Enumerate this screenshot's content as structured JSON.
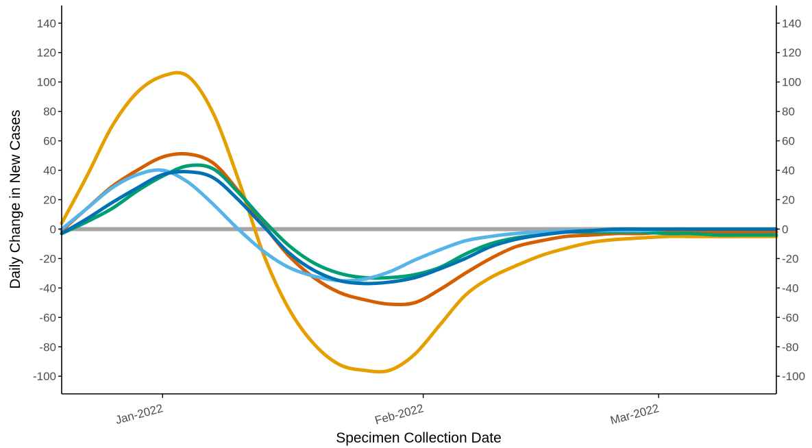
{
  "chart_data": {
    "type": "line",
    "title": "",
    "xlabel": "Specimen Collection Date",
    "ylabel": "Daily Change in New Cases",
    "ylim": [
      -112,
      152
    ],
    "xlim": [
      "2021-12-20",
      "2022-03-15"
    ],
    "y_ticks": [
      "140",
      "120",
      "100",
      "80",
      "60",
      "40",
      "20",
      "0",
      "-20",
      "-40",
      "-60",
      "-80",
      "-100"
    ],
    "x_ticks": [
      {
        "label": "Jan-2022",
        "date": "2022-01-01"
      },
      {
        "label": "Feb-2022",
        "date": "2022-02-01"
      },
      {
        "label": "Mar-2022",
        "date": "2022-03-01"
      }
    ],
    "grid": false,
    "legend": "none",
    "reference_line": {
      "y": 0,
      "color": "#a6a6a6"
    },
    "x": [
      "2021-12-20",
      "2021-12-23",
      "2021-12-26",
      "2021-12-29",
      "2022-01-01",
      "2022-01-04",
      "2022-01-07",
      "2022-01-10",
      "2022-01-13",
      "2022-01-16",
      "2022-01-19",
      "2022-01-22",
      "2022-01-25",
      "2022-01-28",
      "2022-01-31",
      "2022-02-03",
      "2022-02-06",
      "2022-02-09",
      "2022-02-12",
      "2022-02-15",
      "2022-02-18",
      "2022-02-21",
      "2022-02-24",
      "2022-02-27",
      "2022-03-02",
      "2022-03-05",
      "2022-03-08",
      "2022-03-11",
      "2022-03-15"
    ],
    "series": [
      {
        "color": "#e69f00",
        "values": [
          4,
          36,
          70,
          93,
          104,
          104,
          79,
          34,
          -17,
          -54,
          -78,
          -92,
          -96,
          -96,
          -85,
          -65,
          -45,
          -33,
          -25,
          -18,
          -13,
          -9,
          -7,
          -6,
          -5,
          -5,
          -5,
          -5,
          -5
        ]
      },
      {
        "color": "#d55e00",
        "values": [
          -1,
          14,
          29,
          40,
          49,
          51,
          45,
          26,
          3,
          -18,
          -33,
          -43,
          -48,
          -51,
          -50,
          -41,
          -30,
          -20,
          -12,
          -8,
          -5,
          -4,
          -3,
          -3,
          -2,
          -2,
          -2,
          -2,
          -2
        ]
      },
      {
        "color": "#009e73",
        "values": [
          -3,
          5,
          14,
          26,
          36,
          43,
          41,
          25,
          6,
          -11,
          -23,
          -30,
          -33,
          -33,
          -31,
          -26,
          -17,
          -10,
          -6,
          -4,
          -2,
          -2,
          -2,
          -2,
          -3,
          -3,
          -4,
          -4,
          -4
        ]
      },
      {
        "color": "#56b4e9",
        "values": [
          0,
          14,
          28,
          37,
          40,
          32,
          17,
          0,
          -15,
          -26,
          -32,
          -35,
          -34,
          -29,
          -21,
          -14,
          -8,
          -5,
          -3,
          -2,
          -1,
          -1,
          -1,
          -1,
          0,
          0,
          0,
          0,
          0
        ]
      },
      {
        "color": "#0072b2",
        "values": [
          -3,
          7,
          18,
          28,
          37,
          39,
          35,
          20,
          2,
          -16,
          -28,
          -35,
          -37,
          -36,
          -33,
          -27,
          -20,
          -12,
          -7,
          -4,
          -2,
          -1,
          0,
          0,
          0,
          0,
          0,
          0,
          0
        ]
      }
    ]
  }
}
